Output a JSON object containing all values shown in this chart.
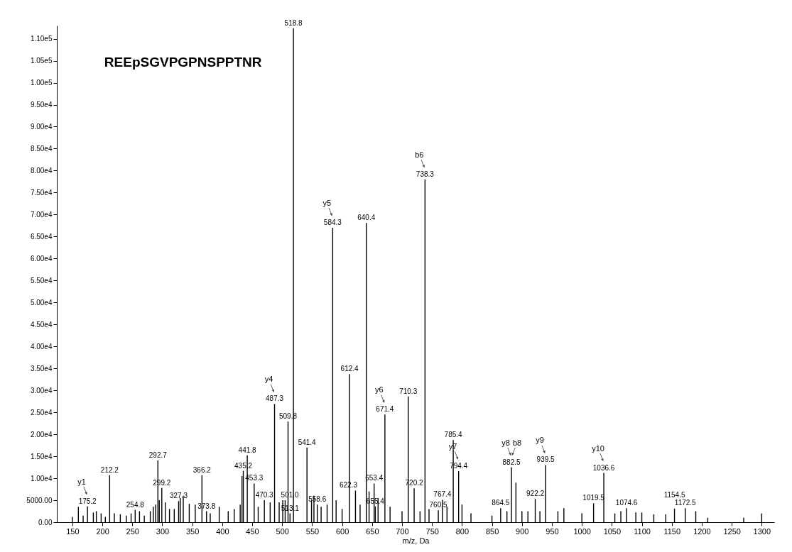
{
  "chart_data": {
    "type": "bar",
    "title": "REEpSGVPGPNSPPTNR",
    "xlabel": "m/z, Da",
    "color": "#000000",
    "grid": false,
    "xlim": [
      130,
      1315
    ],
    "ylim": [
      0,
      113000
    ],
    "xticks": [
      150,
      200,
      250,
      300,
      350,
      400,
      450,
      500,
      550,
      600,
      650,
      700,
      750,
      800,
      850,
      900,
      950,
      1000,
      1050,
      1100,
      1150,
      1200,
      1250,
      1300
    ],
    "yticks": [
      {
        "value": 0,
        "label": "0.00"
      },
      {
        "value": 5000,
        "label": "5000.00"
      },
      {
        "value": 10000,
        "label": "1.00e4"
      },
      {
        "value": 15000,
        "label": "1.50e4"
      },
      {
        "value": 20000,
        "label": "2.00e4"
      },
      {
        "value": 25000,
        "label": "2.50e4"
      },
      {
        "value": 30000,
        "label": "3.00e4"
      },
      {
        "value": 35000,
        "label": "3.50e4"
      },
      {
        "value": 40000,
        "label": "4.00e4"
      },
      {
        "value": 45000,
        "label": "4.50e4"
      },
      {
        "value": 50000,
        "label": "5.00e4"
      },
      {
        "value": 55000,
        "label": "5.50e4"
      },
      {
        "value": 60000,
        "label": "6.00e4"
      },
      {
        "value": 65000,
        "label": "6.50e4"
      },
      {
        "value": 70000,
        "label": "7.00e4"
      },
      {
        "value": 75000,
        "label": "7.50e4"
      },
      {
        "value": 80000,
        "label": "8.00e4"
      },
      {
        "value": 85000,
        "label": "8.50e4"
      },
      {
        "value": 90000,
        "label": "9.00e4"
      },
      {
        "value": 95000,
        "label": "9.50e4"
      },
      {
        "value": 100000,
        "label": "1.00e5"
      },
      {
        "value": 105000,
        "label": "1.05e5"
      },
      {
        "value": 110000,
        "label": "1.10e5"
      }
    ],
    "x": [
      150,
      160,
      168,
      175.2,
      185,
      190,
      198,
      205,
      212.2,
      220,
      230,
      240,
      248,
      254.8,
      262,
      270,
      280,
      285,
      289,
      292.7,
      295,
      299.2,
      305,
      312,
      320,
      327.3,
      330,
      335,
      345,
      355,
      366.2,
      373.8,
      380,
      395,
      410,
      420,
      430,
      433,
      435.2,
      441.8,
      453.3,
      460,
      470.3,
      480,
      487.3,
      495,
      501.0,
      505,
      509.8,
      513.1,
      518.8,
      541.4,
      549,
      553,
      558.6,
      565,
      575,
      584.3,
      590,
      600,
      612.4,
      622.3,
      630,
      640.4,
      645,
      653.4,
      655.4,
      660,
      671.4,
      680,
      700,
      710.3,
      720.2,
      730,
      738.3,
      745,
      760.5,
      767.4,
      775,
      785.4,
      794.4,
      800,
      815,
      850,
      864.5,
      875,
      882.5,
      890,
      900,
      910,
      922.2,
      930,
      939.5,
      960,
      970,
      1000,
      1019.5,
      1036.6,
      1055,
      1065,
      1074.6,
      1090,
      1100,
      1120,
      1140,
      1154.5,
      1172.5,
      1190,
      1210,
      1270,
      1300
    ],
    "values": [
      1200,
      3500,
      1500,
      3600,
      2200,
      2500,
      2000,
      1200,
      10700,
      2000,
      1800,
      1500,
      2000,
      2800,
      2500,
      1500,
      2500,
      3500,
      4000,
      14100,
      5000,
      7800,
      4500,
      3000,
      3000,
      4800,
      5500,
      6000,
      4200,
      4000,
      10700,
      2500,
      2000,
      3500,
      2500,
      3000,
      4000,
      10500,
      11700,
      15200,
      8800,
      3500,
      5000,
      4500,
      26900,
      4500,
      5000,
      5000,
      22900,
      2000,
      112400,
      17000,
      5000,
      6000,
      4000,
      3500,
      4000,
      67000,
      5000,
      3000,
      33700,
      7200,
      4000,
      68100,
      7000,
      8800,
      3600,
      5500,
      24500,
      3500,
      2500,
      28600,
      7700,
      2500,
      78000,
      3000,
      2700,
      5100,
      3500,
      18700,
      11600,
      4000,
      2000,
      1500,
      3200,
      2500,
      12500,
      9000,
      2500,
      2500,
      5300,
      2500,
      13000,
      2500,
      3200,
      2000,
      4300,
      11200,
      2000,
      2500,
      3200,
      2200,
      2200,
      1800,
      1800,
      3100,
      3200,
      2500,
      1000,
      1000,
      2000
    ],
    "annotations": [
      {
        "text": "175.2",
        "x": 175.2,
        "y": 3600
      },
      {
        "text": "212.2",
        "x": 212.2,
        "y": 10700
      },
      {
        "text": "254.8",
        "x": 254.8,
        "y": 2800
      },
      {
        "text": "292.7",
        "x": 292.7,
        "y": 14100
      },
      {
        "text": "299.2",
        "x": 299.2,
        "y": 7800
      },
      {
        "text": "327.3",
        "x": 327.3,
        "y": 4800
      },
      {
        "text": "366.2",
        "x": 366.2,
        "y": 10700
      },
      {
        "text": "373.8",
        "x": 373.8,
        "y": 2500
      },
      {
        "text": "435.2",
        "x": 435.2,
        "y": 11700
      },
      {
        "text": "441.8",
        "x": 441.8,
        "y": 15200
      },
      {
        "text": "453.3",
        "x": 453.3,
        "y": 8800
      },
      {
        "text": "470.3",
        "x": 470.3,
        "y": 5000
      },
      {
        "text": "487.3",
        "x": 487.3,
        "y": 26900
      },
      {
        "text": "501.0",
        "x": 501.0,
        "y": 5000
      },
      {
        "text": "509.8",
        "x": 509.8,
        "y": 22900
      },
      {
        "text": "513.1",
        "x": 513.1,
        "y": 2000
      },
      {
        "text": "518.8",
        "x": 518.8,
        "y": 112400
      },
      {
        "text": "541.4",
        "x": 541.4,
        "y": 17000
      },
      {
        "text": "558.6",
        "x": 558.6,
        "y": 4000
      },
      {
        "text": "584.3",
        "x": 584.3,
        "y": 67000
      },
      {
        "text": "612.4",
        "x": 612.4,
        "y": 33700
      },
      {
        "text": "622.3",
        "x": 622.3,
        "y": 7200
      },
      {
        "text": "640.4",
        "x": 640.4,
        "y": 68100
      },
      {
        "text": "653.4",
        "x": 653.4,
        "y": 8800
      },
      {
        "text": "655.4",
        "x": 655.4,
        "y": 3600
      },
      {
        "text": "671.4",
        "x": 671.4,
        "y": 24500
      },
      {
        "text": "710.3",
        "x": 710.3,
        "y": 28600
      },
      {
        "text": "720.2",
        "x": 720.2,
        "y": 7700
      },
      {
        "text": "738.3",
        "x": 738.3,
        "y": 78000
      },
      {
        "text": "760.5",
        "x": 760.5,
        "y": 2700
      },
      {
        "text": "767.4",
        "x": 767.4,
        "y": 5100
      },
      {
        "text": "785.4",
        "x": 785.4,
        "y": 18700
      },
      {
        "text": "794.4",
        "x": 794.4,
        "y": 11600
      },
      {
        "text": "864.5",
        "x": 864.5,
        "y": 3200
      },
      {
        "text": "882.5",
        "x": 882.5,
        "y": 12500
      },
      {
        "text": "922.2",
        "x": 922.2,
        "y": 5300
      },
      {
        "text": "939.5",
        "x": 939.5,
        "y": 13000
      },
      {
        "text": "1019.5",
        "x": 1019.5,
        "y": 4300
      },
      {
        "text": "1036.6",
        "x": 1036.6,
        "y": 11200
      },
      {
        "text": "1074.6",
        "x": 1074.6,
        "y": 3200
      },
      {
        "text": "1154.5",
        "x": 1154.5,
        "y": 3100
      },
      {
        "text": "1172.5",
        "x": 1172.5,
        "y": 3200
      },
      {
        "text": "y1",
        "x": 175.2,
        "y": 3600
      },
      {
        "text": "y4",
        "x": 487.3,
        "y": 26900
      },
      {
        "text": "y5",
        "x": 584.3,
        "y": 67000
      },
      {
        "text": "y6",
        "x": 671.4,
        "y": 24500
      },
      {
        "text": "b6",
        "x": 738.3,
        "y": 78000
      },
      {
        "text": "y7",
        "x": 794.4,
        "y": 11600
      },
      {
        "text": "y8",
        "x": 882.5,
        "y": 12500
      },
      {
        "text": "b8",
        "x": 882.5,
        "y": 12500
      },
      {
        "text": "y9",
        "x": 939.5,
        "y": 13000
      },
      {
        "text": "y10",
        "x": 1036.6,
        "y": 11200
      }
    ]
  }
}
